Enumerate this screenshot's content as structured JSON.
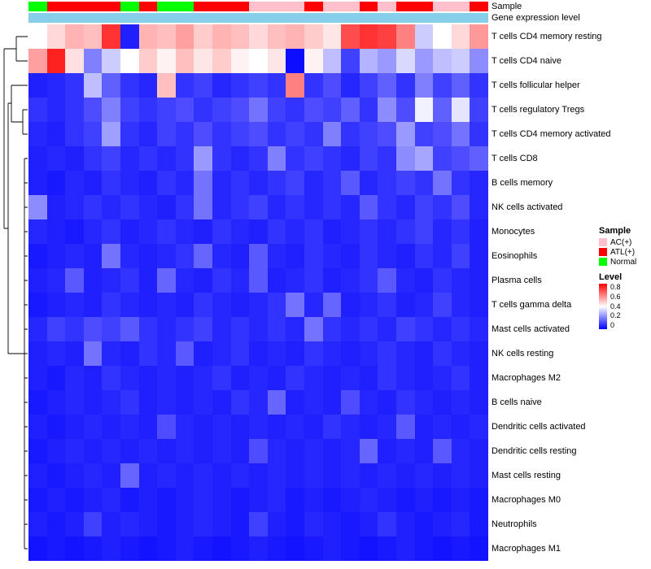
{
  "chart_data": {
    "type": "heatmap",
    "title": "",
    "rows": [
      "T cells CD4 memory resting",
      "T cells CD4 naive",
      "T cells follicular helper",
      "T cells regulatory Tregs",
      "T cells CD4 memory activated",
      "T cells CD8",
      "B cells memory",
      "NK cells activated",
      "Monocytes",
      "Eosinophils",
      "Plasma cells",
      "T cells gamma delta",
      "Mast cells activated",
      "NK cells resting",
      "Macrophages M2",
      "B cells naive",
      "Dendritic cells activated",
      "Dendritic cells resting",
      "Mast cells resting",
      "Macrophages M0",
      "Neutrophils",
      "Macrophages M1"
    ],
    "n_columns": 25,
    "value_range": [
      0,
      0.8
    ],
    "colormap": {
      "low": "#0000FF",
      "mid": "#FFFFFF",
      "high": "#FF0000",
      "midpoint": 0.4
    },
    "matrix": [
      [
        0.4,
        0.46,
        0.52,
        0.5,
        0.72,
        0.05,
        0.52,
        0.5,
        0.55,
        0.48,
        0.52,
        0.5,
        0.46,
        0.5,
        0.52,
        0.48,
        0.44,
        0.68,
        0.72,
        0.7,
        0.6,
        0.32,
        0.4,
        0.46,
        0.56
      ],
      [
        0.55,
        0.75,
        0.45,
        0.2,
        0.32,
        0.4,
        0.48,
        0.42,
        0.5,
        0.44,
        0.48,
        0.42,
        0.4,
        0.44,
        0.02,
        0.42,
        0.3,
        0.1,
        0.28,
        0.24,
        0.34,
        0.24,
        0.3,
        0.32,
        0.22
      ],
      [
        0.05,
        0.06,
        0.08,
        0.3,
        0.15,
        0.08,
        0.06,
        0.5,
        0.08,
        0.1,
        0.06,
        0.08,
        0.1,
        0.08,
        0.6,
        0.08,
        0.12,
        0.06,
        0.1,
        0.15,
        0.08,
        0.2,
        0.1,
        0.15,
        0.08
      ],
      [
        0.08,
        0.06,
        0.08,
        0.12,
        0.2,
        0.1,
        0.08,
        0.1,
        0.12,
        0.08,
        0.1,
        0.12,
        0.18,
        0.1,
        0.08,
        0.12,
        0.1,
        0.15,
        0.08,
        0.22,
        0.12,
        0.38,
        0.15,
        0.36,
        0.1
      ],
      [
        0.06,
        0.05,
        0.08,
        0.1,
        0.25,
        0.08,
        0.06,
        0.1,
        0.08,
        0.12,
        0.08,
        0.1,
        0.12,
        0.08,
        0.1,
        0.08,
        0.2,
        0.08,
        0.1,
        0.12,
        0.24,
        0.1,
        0.12,
        0.18,
        0.08
      ],
      [
        0.05,
        0.06,
        0.05,
        0.08,
        0.1,
        0.06,
        0.08,
        0.06,
        0.08,
        0.24,
        0.08,
        0.06,
        0.08,
        0.2,
        0.08,
        0.1,
        0.08,
        0.06,
        0.1,
        0.08,
        0.22,
        0.26,
        0.1,
        0.12,
        0.15
      ],
      [
        0.05,
        0.04,
        0.06,
        0.05,
        0.08,
        0.06,
        0.05,
        0.08,
        0.06,
        0.18,
        0.06,
        0.08,
        0.06,
        0.08,
        0.1,
        0.06,
        0.08,
        0.14,
        0.06,
        0.08,
        0.1,
        0.08,
        0.18,
        0.08,
        0.06
      ],
      [
        0.22,
        0.05,
        0.06,
        0.08,
        0.06,
        0.08,
        0.06,
        0.05,
        0.08,
        0.18,
        0.06,
        0.08,
        0.1,
        0.06,
        0.08,
        0.06,
        0.08,
        0.06,
        0.14,
        0.08,
        0.06,
        0.1,
        0.08,
        0.12,
        0.06
      ],
      [
        0.06,
        0.05,
        0.04,
        0.06,
        0.08,
        0.05,
        0.06,
        0.08,
        0.06,
        0.05,
        0.08,
        0.06,
        0.05,
        0.08,
        0.06,
        0.08,
        0.05,
        0.06,
        0.08,
        0.06,
        0.08,
        0.1,
        0.06,
        0.08,
        0.05
      ],
      [
        0.04,
        0.05,
        0.06,
        0.05,
        0.18,
        0.06,
        0.05,
        0.06,
        0.08,
        0.16,
        0.06,
        0.05,
        0.14,
        0.06,
        0.05,
        0.08,
        0.06,
        0.05,
        0.08,
        0.06,
        0.05,
        0.08,
        0.06,
        0.1,
        0.05
      ],
      [
        0.05,
        0.06,
        0.14,
        0.05,
        0.06,
        0.08,
        0.05,
        0.16,
        0.06,
        0.05,
        0.08,
        0.06,
        0.14,
        0.05,
        0.06,
        0.08,
        0.05,
        0.06,
        0.08,
        0.14,
        0.06,
        0.05,
        0.08,
        0.06,
        0.05
      ],
      [
        0.04,
        0.05,
        0.06,
        0.05,
        0.08,
        0.06,
        0.05,
        0.06,
        0.05,
        0.08,
        0.06,
        0.05,
        0.06,
        0.08,
        0.18,
        0.06,
        0.16,
        0.05,
        0.06,
        0.08,
        0.05,
        0.06,
        0.1,
        0.06,
        0.05
      ],
      [
        0.06,
        0.1,
        0.08,
        0.12,
        0.1,
        0.14,
        0.08,
        0.06,
        0.08,
        0.1,
        0.06,
        0.08,
        0.06,
        0.08,
        0.06,
        0.18,
        0.08,
        0.06,
        0.08,
        0.06,
        0.1,
        0.08,
        0.06,
        0.08,
        0.06
      ],
      [
        0.05,
        0.06,
        0.05,
        0.18,
        0.06,
        0.05,
        0.08,
        0.06,
        0.14,
        0.05,
        0.06,
        0.08,
        0.05,
        0.06,
        0.05,
        0.08,
        0.06,
        0.05,
        0.06,
        0.08,
        0.06,
        0.05,
        0.08,
        0.06,
        0.05
      ],
      [
        0.05,
        0.04,
        0.06,
        0.05,
        0.08,
        0.06,
        0.05,
        0.06,
        0.05,
        0.06,
        0.08,
        0.05,
        0.06,
        0.05,
        0.08,
        0.06,
        0.05,
        0.06,
        0.05,
        0.08,
        0.06,
        0.05,
        0.06,
        0.08,
        0.05
      ],
      [
        0.04,
        0.05,
        0.06,
        0.05,
        0.06,
        0.08,
        0.05,
        0.06,
        0.05,
        0.06,
        0.05,
        0.08,
        0.06,
        0.16,
        0.05,
        0.06,
        0.05,
        0.12,
        0.06,
        0.05,
        0.08,
        0.06,
        0.05,
        0.06,
        0.05
      ],
      [
        0.05,
        0.04,
        0.05,
        0.06,
        0.05,
        0.06,
        0.05,
        0.12,
        0.06,
        0.05,
        0.06,
        0.05,
        0.06,
        0.05,
        0.06,
        0.05,
        0.08,
        0.06,
        0.05,
        0.06,
        0.14,
        0.05,
        0.06,
        0.05,
        0.06
      ],
      [
        0.04,
        0.05,
        0.06,
        0.05,
        0.06,
        0.05,
        0.06,
        0.05,
        0.06,
        0.05,
        0.06,
        0.05,
        0.12,
        0.06,
        0.05,
        0.06,
        0.05,
        0.06,
        0.16,
        0.05,
        0.06,
        0.05,
        0.14,
        0.06,
        0.05
      ],
      [
        0.05,
        0.04,
        0.05,
        0.06,
        0.05,
        0.16,
        0.05,
        0.06,
        0.05,
        0.06,
        0.05,
        0.06,
        0.05,
        0.06,
        0.05,
        0.06,
        0.05,
        0.06,
        0.05,
        0.06,
        0.05,
        0.06,
        0.05,
        0.06,
        0.05
      ],
      [
        0.04,
        0.05,
        0.04,
        0.05,
        0.06,
        0.04,
        0.05,
        0.04,
        0.05,
        0.06,
        0.05,
        0.04,
        0.05,
        0.06,
        0.04,
        0.05,
        0.04,
        0.05,
        0.06,
        0.05,
        0.04,
        0.05,
        0.04,
        0.05,
        0.04
      ],
      [
        0.05,
        0.04,
        0.05,
        0.1,
        0.05,
        0.06,
        0.05,
        0.04,
        0.05,
        0.06,
        0.05,
        0.04,
        0.1,
        0.05,
        0.04,
        0.06,
        0.05,
        0.04,
        0.05,
        0.08,
        0.05,
        0.04,
        0.05,
        0.06,
        0.04
      ],
      [
        0.03,
        0.04,
        0.03,
        0.04,
        0.05,
        0.04,
        0.03,
        0.04,
        0.05,
        0.04,
        0.03,
        0.04,
        0.05,
        0.04,
        0.03,
        0.04,
        0.05,
        0.04,
        0.03,
        0.04,
        0.05,
        0.04,
        0.03,
        0.04,
        0.03
      ]
    ],
    "column_annotations": {
      "sample": {
        "label": "Sample",
        "values": [
          "Normal",
          "ATL(+)",
          "ATL(+)",
          "ATL(+)",
          "ATL(+)",
          "Normal",
          "ATL(+)",
          "Normal",
          "Normal",
          "ATL(+)",
          "ATL(+)",
          "ATL(+)",
          "AC(+)",
          "AC(+)",
          "AC(+)",
          "ATL(+)",
          "AC(+)",
          "AC(+)",
          "ATL(+)",
          "AC(+)",
          "ATL(+)",
          "ATL(+)",
          "AC(+)",
          "AC(+)",
          "ATL(+)"
        ]
      },
      "gene_expression_level": {
        "label": "Gene expression level",
        "color": "#87CEEB"
      }
    },
    "legend": {
      "sample": {
        "title": "Sample",
        "entries": [
          {
            "label": "AC(+)",
            "color": "#FFC0CB"
          },
          {
            "label": "ATL(+)",
            "color": "#FF0000"
          },
          {
            "label": "Normal",
            "color": "#00FF00"
          }
        ]
      },
      "level": {
        "title": "Level",
        "ticks": [
          "0.8",
          "0.6",
          "0.4",
          "0.2",
          "0"
        ]
      }
    }
  }
}
